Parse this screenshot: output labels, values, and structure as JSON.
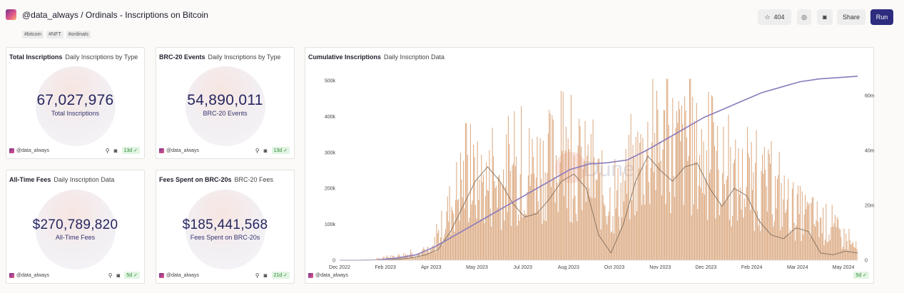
{
  "header": {
    "title": "@data_always / Ordinals - Inscriptions on Bitcoin",
    "tags": [
      "#bitcoin",
      "#NFT",
      "#ordinals"
    ],
    "star_count": "404",
    "share_label": "Share",
    "run_label": "Run"
  },
  "cards": [
    {
      "name": "Total Inscriptions",
      "subtitle": "Daily Inscriptions by Type",
      "value": "67,027,976",
      "label": "Total Inscriptions",
      "author": "@data_always",
      "freshness": "13d"
    },
    {
      "name": "BRC-20 Events",
      "subtitle": "Daily Inscriptions by Type",
      "value": "54,890,011",
      "label": "BRC-20 Events",
      "author": "@data_always",
      "freshness": "13d"
    },
    {
      "name": "All-Time Fees",
      "subtitle": "Daily Inscription Data",
      "value": "$270,789,820",
      "label": "All-Time Fees",
      "author": "@data_always",
      "freshness": "5d"
    },
    {
      "name": "Fees Spent on BRC-20s",
      "subtitle": "BRC-20 Fees",
      "value": "$185,441,568",
      "label": "Fees Spent on BRC-20s",
      "author": "@data_always",
      "freshness": "21d"
    }
  ],
  "main_chart": {
    "name": "Cumulative Inscriptions",
    "subtitle": "Daily Inscription Data",
    "author": "@data_always",
    "freshness": "5d",
    "watermark": "Dune"
  },
  "colors": {
    "bar": "#d9a276",
    "cumulative_line": "#8a7bbd",
    "avg_line": "#7a6a5a",
    "run_button": "#2d2c7e"
  },
  "chart_data": {
    "type": "bar",
    "title": "Cumulative Inscriptions",
    "x_labels": [
      "Dec 2022",
      "Feb 2023",
      "Apr 2023",
      "May 2023",
      "Jul 2023",
      "Aug 2023",
      "Oct 2023",
      "Nov 2023",
      "Dec 2023",
      "Feb 2024",
      "Mar 2024",
      "May 2024"
    ],
    "y_left_ticks": [
      "0",
      "100k",
      "200k",
      "300k",
      "400k",
      "500k"
    ],
    "y_right_ticks": [
      "0",
      "20m",
      "40m",
      "60m"
    ],
    "ylim_left": [
      0,
      520000
    ],
    "ylim_right": [
      0,
      68000000
    ],
    "series": [
      {
        "name": "Daily Inscriptions",
        "kind": "bar",
        "axis": "left",
        "monthly_values": [
          0,
          500,
          15000,
          25000,
          240000,
          230000,
          270000,
          300000,
          280000,
          170000,
          320000,
          350000,
          300000,
          240000,
          220000,
          150000,
          110000,
          35000
        ]
      },
      {
        "name": "7-day average",
        "kind": "line",
        "axis": "left",
        "values": [
          0,
          0,
          0,
          200,
          1000,
          3000,
          8000,
          15000,
          30000,
          80000,
          150000,
          220000,
          260000,
          220000,
          160000,
          120000,
          130000,
          170000,
          220000,
          240000,
          200000,
          70000,
          20000,
          100000,
          220000,
          290000,
          250000,
          220000,
          260000,
          270000,
          200000,
          150000,
          200000,
          180000,
          110000,
          70000,
          60000,
          90000,
          80000,
          20000,
          15000,
          25000,
          20000
        ]
      },
      {
        "name": "Cumulative Inscriptions",
        "kind": "line",
        "axis": "right",
        "values": [
          0,
          0,
          100000,
          800000,
          2000000,
          5000000,
          9000000,
          13000000,
          17000000,
          21000000,
          25000000,
          29000000,
          33000000,
          35000000,
          35500000,
          36500000,
          40000000,
          44000000,
          48000000,
          52000000,
          55000000,
          58000000,
          61000000,
          63000000,
          65000000,
          66000000,
          66500000,
          67000000
        ]
      }
    ]
  }
}
